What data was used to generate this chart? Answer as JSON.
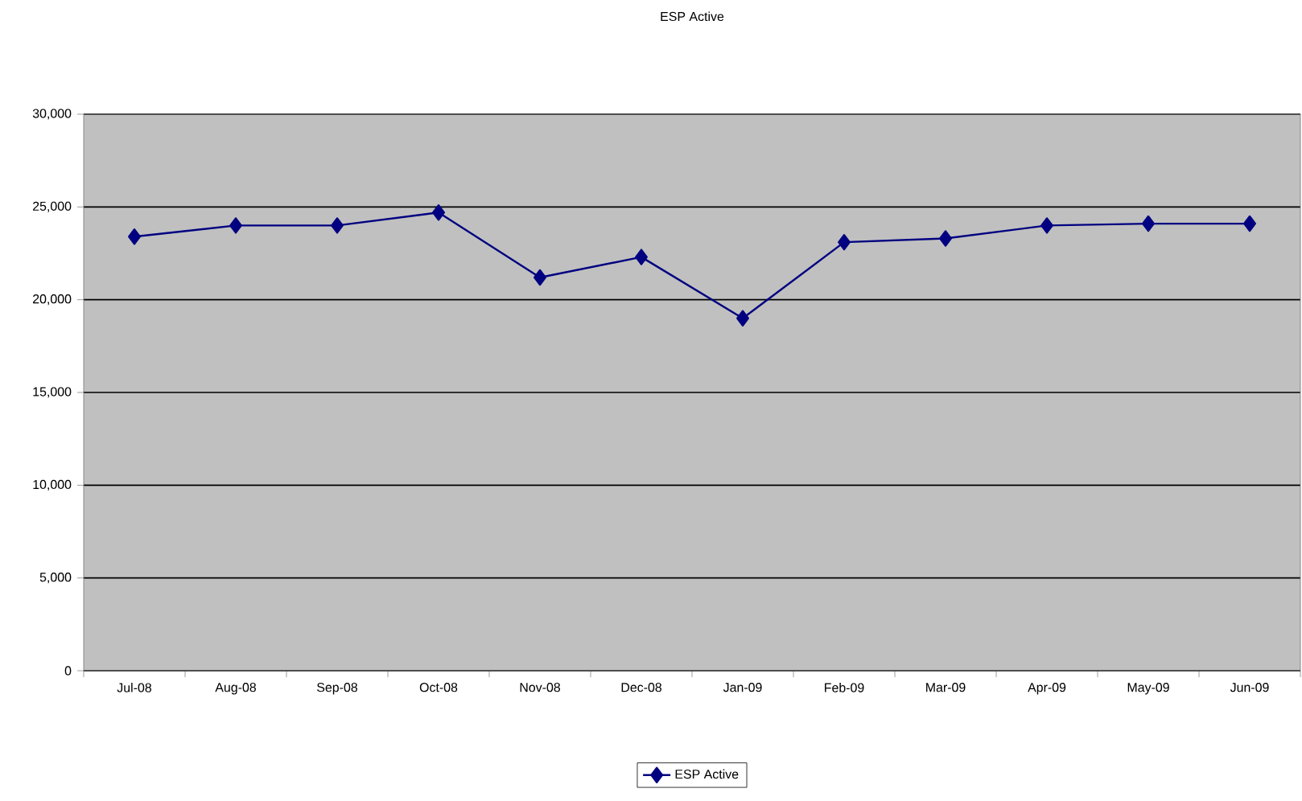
{
  "chart_data": {
    "type": "line",
    "title": "ESP Active",
    "categories": [
      "Jul-08",
      "Aug-08",
      "Sep-08",
      "Oct-08",
      "Nov-08",
      "Dec-08",
      "Jan-09",
      "Feb-09",
      "Mar-09",
      "Apr-09",
      "May-09",
      "Jun-09"
    ],
    "series": [
      {
        "name": "ESP Active",
        "color": "#000080",
        "values": [
          23400,
          24000,
          24000,
          24700,
          21200,
          22300,
          19000,
          23100,
          23300,
          24000,
          24100,
          24100
        ]
      }
    ],
    "ylim": [
      0,
      30000
    ],
    "yticks": [
      {
        "value": 0,
        "label": "0"
      },
      {
        "value": 5000,
        "label": "5,000"
      },
      {
        "value": 10000,
        "label": "10,000"
      },
      {
        "value": 15000,
        "label": "15,000"
      },
      {
        "value": 20000,
        "label": "20,000"
      },
      {
        "value": 25000,
        "label": "25,000"
      },
      {
        "value": 30000,
        "label": "30,000"
      }
    ],
    "grid": "y",
    "legend": "bottom",
    "marker": "diamond",
    "line_style": "solid"
  }
}
